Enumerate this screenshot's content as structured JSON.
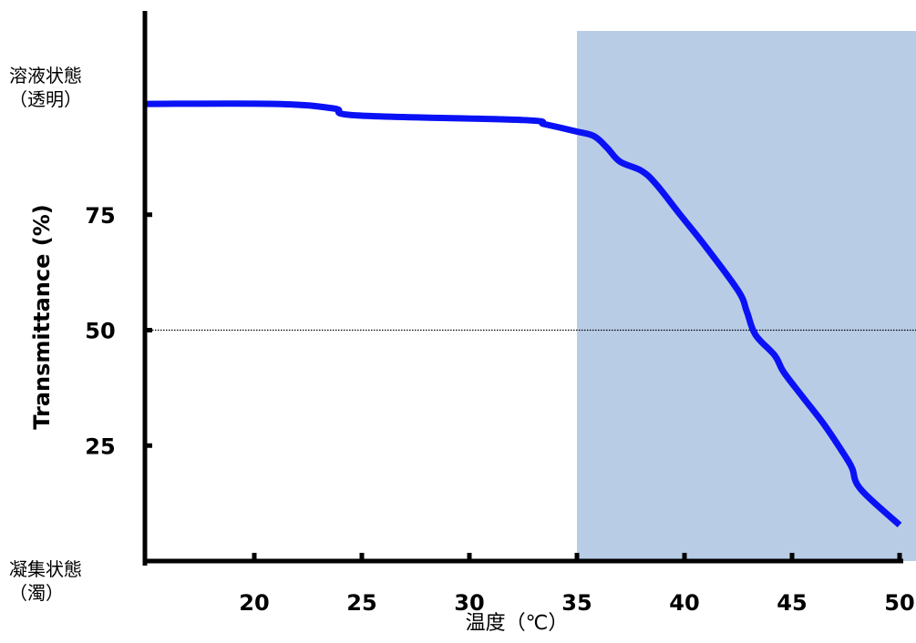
{
  "chart_data": {
    "type": "line",
    "xlabel": "温度（℃）",
    "ylabel": "Transmittance (%)",
    "xlim": [
      15,
      50
    ],
    "ylim": [
      0,
      100
    ],
    "x_ticks": [
      20,
      25,
      30,
      35,
      40,
      45,
      50
    ],
    "y_ticks": [
      25,
      50,
      75
    ],
    "reference_line_y": 50,
    "shaded_region_x": [
      35,
      50
    ],
    "state_labels": {
      "top_line1": "溶液状態",
      "top_line2": "（透明）",
      "bottom_line1": "凝集状態",
      "bottom_line2": "（濁）"
    },
    "series": [
      {
        "x": [
          15,
          21,
          23.7,
          24.8,
          32.5,
          33.5,
          35.0,
          35.8,
          36.4,
          37.0,
          38.0,
          38.7,
          39.8,
          41.0,
          42.5,
          42.9,
          43.3,
          44.2,
          44.6,
          45.5,
          46.5,
          47.5,
          47.8,
          48.2,
          50
        ],
        "y": [
          99,
          99,
          98,
          96.5,
          95.5,
          94.6,
          93,
          92,
          89.5,
          86.5,
          84.5,
          81.5,
          75,
          68,
          58.5,
          54,
          49,
          44.5,
          41,
          35.5,
          29.5,
          22.5,
          20,
          15.5,
          7.8
        ]
      }
    ],
    "colors": {
      "line": "#0a12f5",
      "shade": "#b9cce6",
      "axis": "#000000",
      "reference": "#000000"
    }
  }
}
